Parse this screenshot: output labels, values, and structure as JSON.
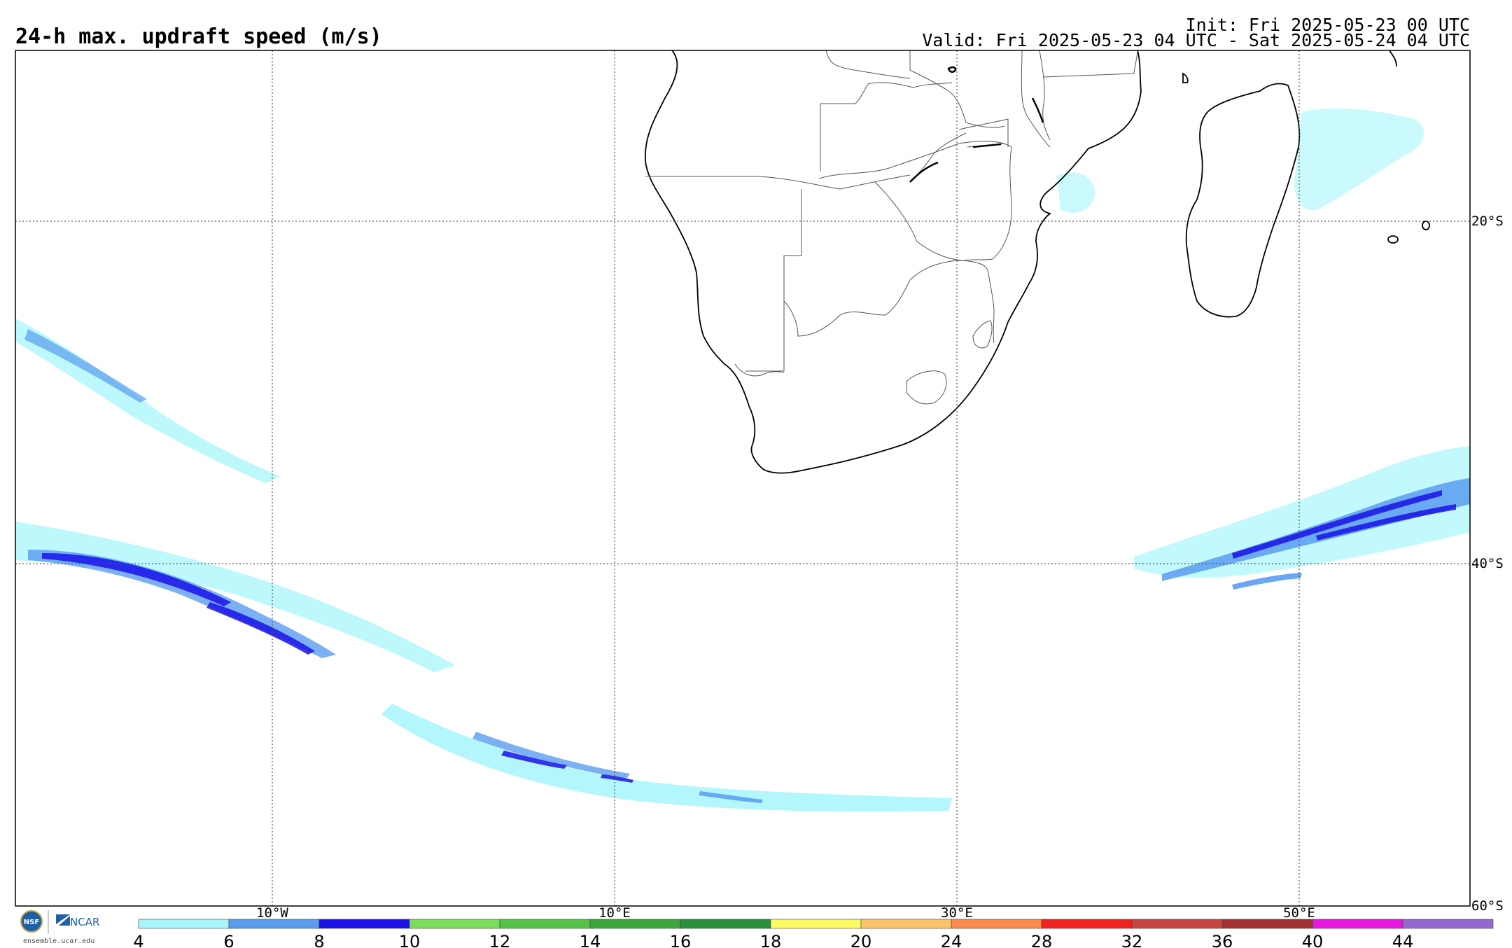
{
  "header": {
    "title": "24-h max. updraft speed (m/s)",
    "init": "Init: Fri 2025-05-23 00 UTC",
    "valid": "Valid: Fri 2025-05-23 04 UTC - Sat 2025-05-24 04 UTC"
  },
  "map": {
    "lat_labels": [
      "20°S",
      "40°S",
      "60°S"
    ],
    "lon_labels": [
      "10°W",
      "10°E",
      "30°E",
      "50°E"
    ],
    "grid_lines": true,
    "grid_style": "dotted"
  },
  "colorbar": {
    "ticks": [
      "4",
      "6",
      "8",
      "10",
      "12",
      "14",
      "16",
      "18",
      "20",
      "24",
      "28",
      "32",
      "36",
      "40",
      "44"
    ],
    "colors": [
      "#a6f6fb",
      "#5a9cf0",
      "#1a12e8",
      "#7cdc5e",
      "#55c24a",
      "#3aa83d",
      "#27913a",
      "#fdfb62",
      "#fbc46a",
      "#f98a4c",
      "#f2231f",
      "#c94542",
      "#a53030",
      "#e818e0",
      "#9567d0"
    ]
  },
  "footer": {
    "logo_nsf": "NSF",
    "logo_ncar": "NCAR",
    "url": "ensemble.ucar.edu"
  },
  "colors": {
    "light_cyan": "#a6f6fb",
    "medium_blue": "#5a9cf0",
    "dark_blue": "#1a12e8"
  }
}
